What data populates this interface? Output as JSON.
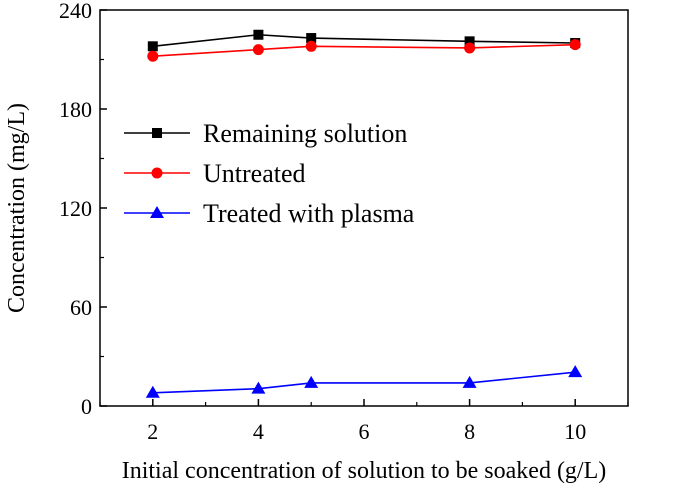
{
  "chart_data": {
    "type": "line",
    "title": "",
    "xlabel": "Initial concentration of solution to be soaked (g/L)",
    "ylabel": "Concentration (mg/L)",
    "xlim": [
      1.0,
      11.0
    ],
    "ylim": [
      0,
      240
    ],
    "xticks": [
      "2",
      "4",
      "6",
      "8",
      "10"
    ],
    "yticks": [
      "0",
      "60",
      "120",
      "180",
      "240"
    ],
    "grid": false,
    "legend_position": "upper-left",
    "series": [
      {
        "name": "Remaining solution",
        "color": "#000000",
        "marker": "square",
        "x": [
          2,
          4,
          5,
          8,
          10
        ],
        "y": [
          218,
          225,
          223,
          221,
          220
        ]
      },
      {
        "name": "Untreated",
        "color": "#ff0000",
        "marker": "circle",
        "x": [
          2,
          4,
          5,
          8,
          10
        ],
        "y": [
          212,
          216,
          218,
          217,
          219
        ]
      },
      {
        "name": "Treated with plasma",
        "color": "#0000ff",
        "marker": "triangle",
        "x": [
          2,
          4,
          5,
          8,
          10
        ],
        "y": [
          8,
          10.5,
          14,
          14,
          20.5
        ]
      }
    ]
  }
}
